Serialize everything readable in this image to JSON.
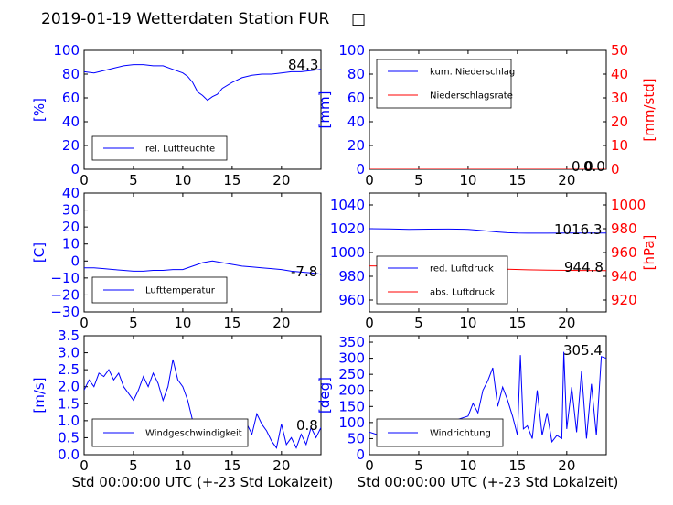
{
  "figure_title": "2019-01-19 Wetterdaten Station FUR",
  "title_glyph": "□",
  "colors": {
    "left_axis": "#0000ff",
    "right_axis": "#ff0000",
    "line1": "#0000ff",
    "line2": "#ff0000",
    "band": "#8080ff"
  },
  "chart_data": [
    {
      "type": "line",
      "ylabel": "[%]",
      "xlim": [
        0,
        24
      ],
      "ylim": [
        0,
        100
      ],
      "xticks": [
        "0",
        "5",
        "10",
        "15",
        "20"
      ],
      "yticks": [
        "0",
        "20",
        "40",
        "60",
        "80",
        "100"
      ],
      "legend": [
        "rel. Luftfeuchte"
      ],
      "legend_position": "lower-left",
      "annotation": "84.3",
      "series": [
        {
          "name": "rel. Luftfeuchte",
          "axis": "left",
          "x": [
            0,
            1,
            2,
            3,
            4,
            5,
            6,
            7,
            8,
            9,
            10,
            10.5,
            11,
            11.5,
            12,
            12.5,
            13,
            13.5,
            14,
            15,
            16,
            17,
            18,
            19,
            20,
            21,
            22,
            23,
            24
          ],
          "y": [
            82,
            81,
            83,
            85,
            87,
            88,
            88,
            87,
            87,
            84,
            81,
            78,
            73,
            65,
            62,
            58,
            61,
            63,
            68,
            73,
            77,
            79,
            80,
            80,
            81,
            82,
            82,
            83,
            84
          ]
        }
      ]
    },
    {
      "type": "line",
      "ylabel": "[mm]",
      "ylabel_right": "[mm/std]",
      "xlim": [
        0,
        24
      ],
      "ylim": [
        0,
        100
      ],
      "ylim_right": [
        0,
        50
      ],
      "xticks": [
        "0",
        "5",
        "10",
        "15",
        "20"
      ],
      "yticks": [
        "0",
        "20",
        "40",
        "60",
        "80",
        "100"
      ],
      "yticks_right": [
        "0",
        "10",
        "20",
        "30",
        "40",
        "50"
      ],
      "legend": [
        "kum. Niederschlag",
        "Niederschlagsrate"
      ],
      "legend_position": "upper-left",
      "annotation": "0.0",
      "annotation2": "0.0",
      "series": [
        {
          "name": "kum. Niederschlag",
          "axis": "left",
          "x": [
            0,
            24
          ],
          "y": [
            0,
            0
          ]
        },
        {
          "name": "Niederschlagsrate",
          "axis": "right",
          "x": [
            0,
            24
          ],
          "y": [
            0,
            0
          ]
        }
      ]
    },
    {
      "type": "line",
      "ylabel": "[C]",
      "xlim": [
        0,
        24
      ],
      "ylim": [
        -30,
        40
      ],
      "xticks": [
        "0",
        "5",
        "10",
        "15",
        "20"
      ],
      "yticks": [
        "−30",
        "−20",
        "−10",
        "0",
        "10",
        "20",
        "30",
        "40"
      ],
      "legend": [
        "Lufttemperatur"
      ],
      "legend_position": "lower-left",
      "annotation": "-7.8",
      "series": [
        {
          "name": "Lufttemperatur",
          "axis": "left",
          "x": [
            0,
            1,
            2,
            3,
            4,
            5,
            6,
            7,
            8,
            9,
            10,
            11,
            12,
            13,
            14,
            15,
            16,
            17,
            18,
            19,
            20,
            21,
            22,
            23,
            24
          ],
          "y": [
            -4,
            -4,
            -4.5,
            -5,
            -5.5,
            -6,
            -6,
            -5.5,
            -5.5,
            -5,
            -5,
            -3,
            -1,
            0,
            -1,
            -2,
            -3,
            -3.5,
            -4,
            -4.5,
            -5,
            -6,
            -6.5,
            -7,
            -7.8
          ]
        }
      ]
    },
    {
      "type": "line",
      "ylabel_right": "[hPa]",
      "xlim": [
        0,
        24
      ],
      "ylim": [
        950,
        1050
      ],
      "ylim_right": [
        910,
        1010
      ],
      "xticks": [
        "0",
        "5",
        "10",
        "15",
        "20"
      ],
      "yticks": [
        "960",
        "980",
        "1000",
        "1020",
        "1040"
      ],
      "yticks_right": [
        "920",
        "940",
        "960",
        "980",
        "1000"
      ],
      "legend": [
        "red. Luftdruck",
        "abs. Luftdruck"
      ],
      "legend_position": "lower-left",
      "annotation": "1016.3",
      "annotation2": "944.8",
      "series": [
        {
          "name": "red. Luftdruck",
          "axis": "left",
          "x": [
            0,
            2,
            4,
            6,
            8,
            10,
            11,
            12,
            13,
            14,
            15,
            16,
            18,
            20,
            22,
            24
          ],
          "y": [
            1020,
            1019.8,
            1019.5,
            1019.6,
            1019.7,
            1019.5,
            1018.8,
            1018,
            1017.2,
            1016.6,
            1016.3,
            1016.2,
            1016.2,
            1016.3,
            1016.3,
            1016.3
          ]
        },
        {
          "name": "abs. Luftdruck",
          "axis": "right",
          "x": [
            0,
            2,
            4,
            6,
            8,
            10,
            12,
            14,
            16,
            18,
            20,
            22,
            24
          ],
          "y": [
            948.8,
            948.5,
            948.2,
            947.9,
            947.5,
            947.0,
            946.4,
            945.9,
            945.5,
            945.2,
            945.0,
            944.9,
            944.8
          ]
        }
      ]
    },
    {
      "type": "line",
      "ylabel": "[m/s]",
      "xlabel": "Std 00:00:00 UTC (+-23 Std Lokalzeit)",
      "xlim": [
        0,
        24
      ],
      "ylim": [
        0,
        3.5
      ],
      "xticks": [
        "0",
        "5",
        "10",
        "15",
        "20"
      ],
      "yticks": [
        "0.0",
        "0.5",
        "1.0",
        "1.5",
        "2.0",
        "2.5",
        "3.0",
        "3.5"
      ],
      "legend": [
        "Windgeschwindigkeit"
      ],
      "legend_position": "lower-left",
      "annotation": "0.8",
      "series": [
        {
          "name": "Windgeschwindigkeit",
          "axis": "left",
          "x": [
            0,
            0.5,
            1,
            1.5,
            2,
            2.5,
            3,
            3.5,
            4,
            4.5,
            5,
            5.5,
            6,
            6.5,
            7,
            7.5,
            8,
            8.5,
            9,
            9.5,
            10,
            10.5,
            11,
            11.5,
            12,
            12.5,
            13,
            13.5,
            14,
            14.5,
            15,
            15.5,
            16,
            16.5,
            17,
            17.5,
            18,
            18.5,
            19,
            19.5,
            20,
            20.5,
            21,
            21.5,
            22,
            22.5,
            23,
            23.5,
            24
          ],
          "y": [
            1.9,
            2.2,
            2.0,
            2.4,
            2.3,
            2.5,
            2.2,
            2.4,
            2.0,
            1.8,
            1.6,
            1.9,
            2.3,
            2.0,
            2.4,
            2.1,
            1.6,
            2.0,
            2.8,
            2.2,
            2.0,
            1.6,
            1.0,
            0.6,
            0.9,
            0.4,
            1.0,
            0.5,
            0.8,
            0.4,
            1.0,
            0.5,
            0.7,
            0.9,
            0.6,
            1.2,
            0.9,
            0.7,
            0.4,
            0.2,
            0.9,
            0.3,
            0.5,
            0.2,
            0.6,
            0.3,
            0.8,
            0.5,
            0.8
          ]
        }
      ]
    },
    {
      "type": "line",
      "ylabel": "[deg]",
      "xlabel": "Std 00:00:00 UTC (+-23 Std Lokalzeit)",
      "xlim": [
        0,
        24
      ],
      "ylim": [
        0,
        370
      ],
      "xticks": [
        "0",
        "5",
        "10",
        "15",
        "20"
      ],
      "yticks": [
        "0",
        "50",
        "100",
        "150",
        "200",
        "250",
        "300",
        "350"
      ],
      "legend": [
        "Windrichtung"
      ],
      "legend_position": "lower-left",
      "annotation": "305.4",
      "series": [
        {
          "name": "Windrichtung",
          "axis": "left",
          "x": [
            0,
            1,
            2,
            3,
            4,
            5,
            6,
            7,
            7.5,
            8,
            9,
            10,
            10.5,
            11,
            11.5,
            12,
            12.5,
            13,
            13.5,
            14,
            14.5,
            15,
            15.3,
            15.6,
            16,
            16.5,
            17,
            17.5,
            18,
            18.5,
            19,
            19.5,
            19.7,
            20,
            20.5,
            21,
            21.5,
            22,
            22.5,
            23,
            23.5,
            24
          ],
          "y": [
            70,
            60,
            70,
            55,
            65,
            60,
            60,
            55,
            110,
            105,
            110,
            120,
            160,
            130,
            200,
            230,
            270,
            150,
            210,
            170,
            120,
            60,
            310,
            80,
            90,
            50,
            200,
            60,
            130,
            40,
            60,
            50,
            320,
            80,
            210,
            70,
            260,
            50,
            220,
            60,
            305,
            300
          ]
        }
      ]
    }
  ]
}
